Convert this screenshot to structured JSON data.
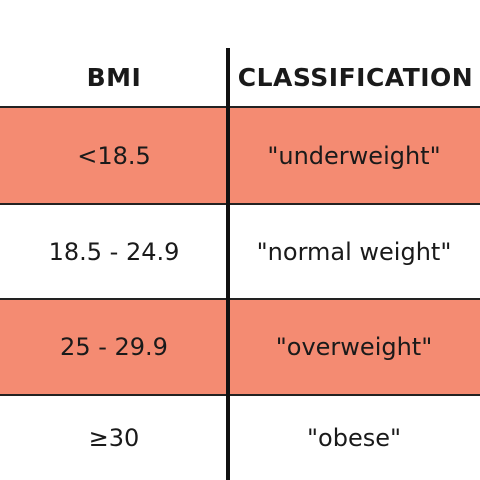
{
  "table": {
    "headers": {
      "bmi": "BMI",
      "classification": "CLASSIFICATION"
    },
    "rows": [
      {
        "bmi": "<18.5",
        "classification": "\"underweight\"",
        "highlighted": true
      },
      {
        "bmi": "18.5 - 24.9",
        "classification": "\"normal weight\"",
        "highlighted": false
      },
      {
        "bmi": "25 - 29.9",
        "classification": "\"overweight\"",
        "highlighted": true
      },
      {
        "bmi": "≥30",
        "classification": "\"obese\"",
        "highlighted": false
      }
    ],
    "colors": {
      "highlight": "#f48b72",
      "text": "#1a1a1a",
      "divider": "#111111"
    }
  }
}
